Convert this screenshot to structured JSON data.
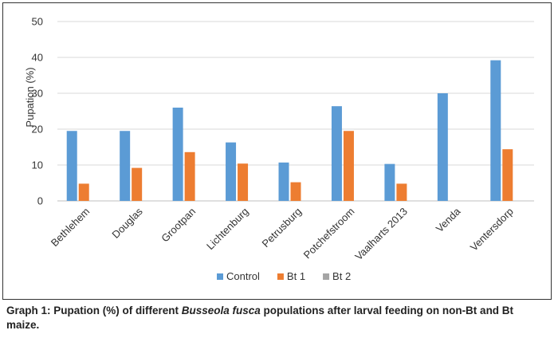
{
  "chart_data": {
    "type": "bar",
    "ylabel": "Pupation (%)",
    "xlabel": "",
    "ylim": [
      0,
      50
    ],
    "yticks": [
      0,
      10,
      20,
      30,
      40,
      50
    ],
    "grid": true,
    "legend_position": "bottom",
    "categories": [
      "Bethlehem",
      "Douglas",
      "Grootpan",
      "Lichtenburg",
      "Petrusburg",
      "Potchefstroom",
      "Vaalharts 2013",
      "Venda",
      "Ventersdorp"
    ],
    "series": [
      {
        "name": "Control",
        "color": "#5b9bd5",
        "values": [
          19.5,
          19.5,
          26,
          16.3,
          10.7,
          26.4,
          10.3,
          30,
          39.2
        ]
      },
      {
        "name": "Bt 1",
        "color": "#ed7d31",
        "values": [
          4.8,
          9.2,
          13.6,
          10.4,
          5.2,
          19.5,
          4.8,
          0,
          14.4
        ]
      },
      {
        "name": "Bt 2",
        "color": "#a5a5a5",
        "values": [
          0,
          0,
          0,
          0,
          0,
          0,
          0,
          0,
          0
        ]
      }
    ]
  },
  "caption": {
    "prefix": "Graph 1: Pupation (%) of different ",
    "species": "Busseola fusca",
    "suffix": " populations after larval feeding on non-Bt and Bt maize."
  }
}
